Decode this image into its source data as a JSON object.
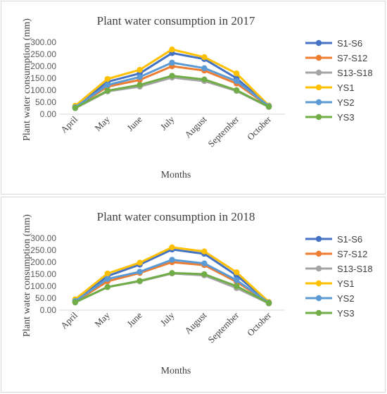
{
  "chart_data": [
    {
      "type": "line",
      "title": "Plant water consumption in 2017",
      "xlabel": "Months",
      "ylabel": "Plant water consumption (mm)",
      "ylim": [
        0,
        300
      ],
      "yticks": [
        "0.00",
        "50.00",
        "100.00",
        "150.00",
        "200.00",
        "250.00",
        "300.00"
      ],
      "categories": [
        "April",
        "May",
        "June",
        "July",
        "August",
        "September",
        "October"
      ],
      "legend_position": "right",
      "series": [
        {
          "name": "S1-S6",
          "color": "#4472c4",
          "values": [
            30,
            135,
            170,
            255,
            230,
            150,
            35
          ]
        },
        {
          "name": "S7-S12",
          "color": "#ed7d31",
          "values": [
            28,
            115,
            143,
            200,
            182,
            128,
            33
          ]
        },
        {
          "name": "S13-S18",
          "color": "#a5a5a5",
          "values": [
            25,
            95,
            115,
            153,
            138,
            97,
            30
          ]
        },
        {
          "name": "YS1",
          "color": "#ffc000",
          "values": [
            35,
            147,
            185,
            270,
            238,
            170,
            36
          ]
        },
        {
          "name": "YS2",
          "color": "#5b9bd5",
          "values": [
            29,
            122,
            155,
            215,
            192,
            138,
            34
          ]
        },
        {
          "name": "YS3",
          "color": "#70ad47",
          "values": [
            26,
            98,
            122,
            160,
            145,
            100,
            31
          ]
        }
      ]
    },
    {
      "type": "line",
      "title": "Plant water consumption in 2018",
      "xlabel": "Months",
      "ylabel": "Plant water consumption (mm)",
      "ylim": [
        0,
        300
      ],
      "yticks": [
        "0.00",
        "50.00",
        "100.00",
        "150.00",
        "200.00",
        "250.00",
        "300.00"
      ],
      "categories": [
        "April",
        "May",
        "June",
        "July",
        "August",
        "September",
        "October"
      ],
      "legend_position": "right",
      "series": [
        {
          "name": "S1-S6",
          "color": "#4472c4",
          "values": [
            40,
            142,
            190,
            253,
            235,
            145,
            32
          ]
        },
        {
          "name": "S7-S12",
          "color": "#ed7d31",
          "values": [
            35,
            120,
            155,
            200,
            188,
            118,
            30
          ]
        },
        {
          "name": "S13-S18",
          "color": "#a5a5a5",
          "values": [
            32,
            97,
            120,
            153,
            145,
            92,
            28
          ]
        },
        {
          "name": "YS1",
          "color": "#ffc000",
          "values": [
            45,
            153,
            198,
            262,
            245,
            158,
            34
          ]
        },
        {
          "name": "YS2",
          "color": "#5b9bd5",
          "values": [
            38,
            130,
            160,
            210,
            195,
            125,
            31
          ]
        },
        {
          "name": "YS3",
          "color": "#70ad47",
          "values": [
            33,
            96,
            122,
            155,
            150,
            100,
            29
          ]
        }
      ]
    }
  ]
}
